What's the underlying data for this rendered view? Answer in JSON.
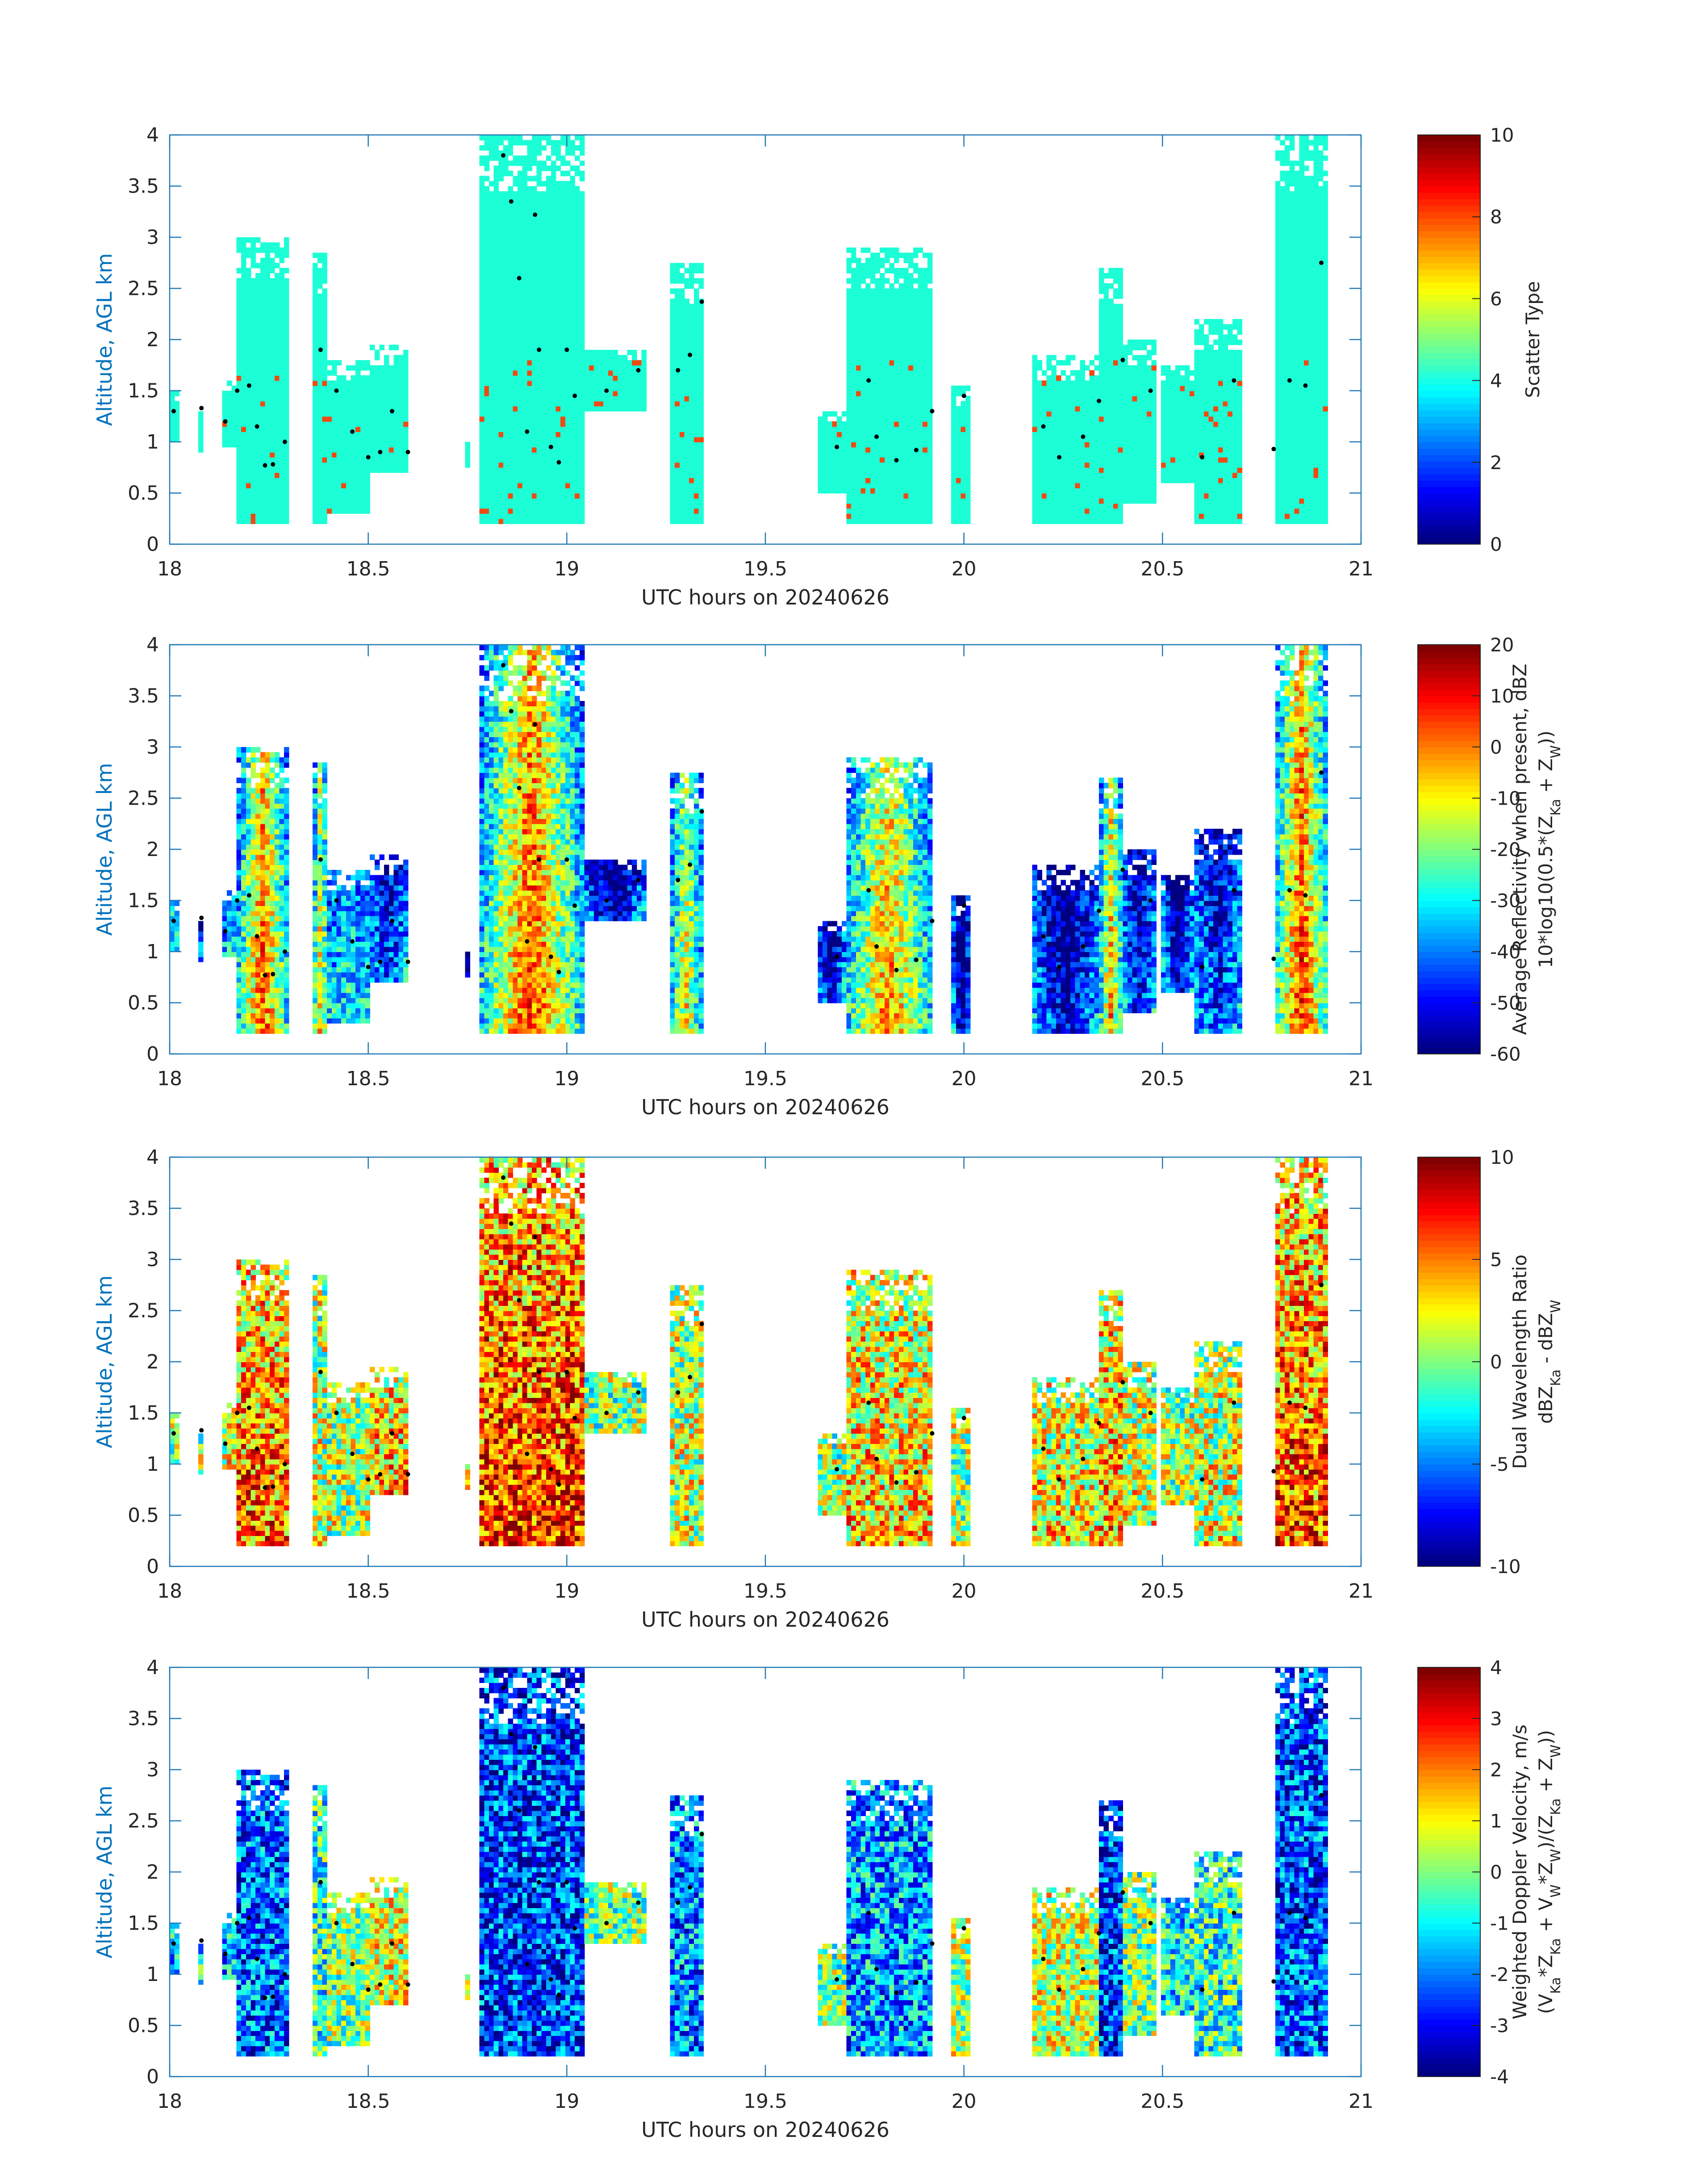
{
  "colors": {
    "axis": "#1f77b4",
    "ylabel": "#0072bd",
    "tick_text": "#262626",
    "background": "#ffffff"
  },
  "chart_data": [
    {
      "type": "heatmap",
      "xlabel": "UTC hours on 20240626",
      "ylabel": "Altitude, AGL km",
      "xlim": [
        18,
        21
      ],
      "ylim": [
        0,
        4
      ],
      "xticks": [
        "18",
        "18.5",
        "19",
        "19.5",
        "20",
        "20.5",
        "21"
      ],
      "yticks": [
        "0",
        "0.5",
        "1",
        "1.5",
        "2",
        "2.5",
        "3",
        "3.5",
        "4"
      ],
      "colorbar": {
        "label_lines": [
          "Scatter Type"
        ],
        "range": [
          0,
          10
        ],
        "ticks": [
          "0",
          "2",
          "4",
          "6",
          "8",
          "10"
        ],
        "colormap": "jet"
      },
      "field": "scatter",
      "dots": [
        [
          18.01,
          1.3
        ],
        [
          18.08,
          1.33
        ],
        [
          18.14,
          1.2
        ],
        [
          18.17,
          1.5
        ],
        [
          18.2,
          1.55
        ],
        [
          18.22,
          1.15
        ],
        [
          18.24,
          0.77
        ],
        [
          18.26,
          0.78
        ],
        [
          18.29,
          1.0
        ],
        [
          18.38,
          1.9
        ],
        [
          18.42,
          1.5
        ],
        [
          18.46,
          1.1
        ],
        [
          18.5,
          0.85
        ],
        [
          18.53,
          0.9
        ],
        [
          18.56,
          1.3
        ],
        [
          18.6,
          0.9
        ],
        [
          18.84,
          3.8
        ],
        [
          18.86,
          3.35
        ],
        [
          18.88,
          2.6
        ],
        [
          18.9,
          1.1
        ],
        [
          18.92,
          3.22
        ],
        [
          18.93,
          1.9
        ],
        [
          18.96,
          0.95
        ],
        [
          18.98,
          0.8
        ],
        [
          19.0,
          1.9
        ],
        [
          19.02,
          1.45
        ],
        [
          19.1,
          1.5
        ],
        [
          19.18,
          1.7
        ],
        [
          19.28,
          1.7
        ],
        [
          19.31,
          1.85
        ],
        [
          19.34,
          2.37
        ],
        [
          19.68,
          0.95
        ],
        [
          19.76,
          1.6
        ],
        [
          19.78,
          1.05
        ],
        [
          19.83,
          0.82
        ],
        [
          19.88,
          0.92
        ],
        [
          19.92,
          1.3
        ],
        [
          20.0,
          1.45
        ],
        [
          20.2,
          1.15
        ],
        [
          20.24,
          0.85
        ],
        [
          20.3,
          1.05
        ],
        [
          20.34,
          1.4
        ],
        [
          20.4,
          1.8
        ],
        [
          20.47,
          1.5
        ],
        [
          20.6,
          0.85
        ],
        [
          20.68,
          1.6
        ],
        [
          20.78,
          0.93
        ],
        [
          20.82,
          1.6
        ],
        [
          20.86,
          1.55
        ],
        [
          20.9,
          2.75
        ]
      ],
      "color_scale": "Scatter Type is drawn with the jet colormap; plotted values are read off the colorbar."
    },
    {
      "type": "heatmap",
      "xlabel": "UTC hours on 20240626",
      "ylabel": "Altitude, AGL km",
      "xlim": [
        18,
        21
      ],
      "ylim": [
        0,
        4
      ],
      "xticks": [
        "18",
        "18.5",
        "19",
        "19.5",
        "20",
        "20.5",
        "21"
      ],
      "yticks": [
        "0",
        "0.5",
        "1",
        "1.5",
        "2",
        "2.5",
        "3",
        "3.5",
        "4"
      ],
      "colorbar": {
        "label_lines": [
          "Average Reflectivity when present, dBZ",
          "10*log10(0.5*(Z_Ka + Z_W))"
        ],
        "range": [
          -60,
          20
        ],
        "ticks": [
          "-60",
          "-50",
          "-40",
          "-30",
          "-20",
          "-10",
          "0",
          "10",
          "20"
        ],
        "colormap": "jet"
      },
      "field": "refl",
      "dots": [
        [
          18.01,
          1.3
        ],
        [
          18.08,
          1.33
        ],
        [
          18.14,
          1.2
        ],
        [
          18.17,
          1.5
        ],
        [
          18.2,
          1.55
        ],
        [
          18.22,
          1.15
        ],
        [
          18.24,
          0.77
        ],
        [
          18.26,
          0.78
        ],
        [
          18.29,
          1.0
        ],
        [
          18.38,
          1.9
        ],
        [
          18.42,
          1.5
        ],
        [
          18.46,
          1.1
        ],
        [
          18.5,
          0.85
        ],
        [
          18.53,
          0.9
        ],
        [
          18.56,
          1.3
        ],
        [
          18.6,
          0.9
        ],
        [
          18.84,
          3.8
        ],
        [
          18.86,
          3.35
        ],
        [
          18.88,
          2.6
        ],
        [
          18.9,
          1.1
        ],
        [
          18.92,
          3.22
        ],
        [
          18.93,
          1.9
        ],
        [
          18.96,
          0.95
        ],
        [
          18.98,
          0.8
        ],
        [
          19.0,
          1.9
        ],
        [
          19.02,
          1.45
        ],
        [
          19.1,
          1.5
        ],
        [
          19.18,
          1.7
        ],
        [
          19.28,
          1.7
        ],
        [
          19.31,
          1.85
        ],
        [
          19.34,
          2.37
        ],
        [
          19.68,
          0.95
        ],
        [
          19.76,
          1.6
        ],
        [
          19.78,
          1.05
        ],
        [
          19.83,
          0.82
        ],
        [
          19.88,
          0.92
        ],
        [
          19.92,
          1.3
        ],
        [
          20.0,
          1.45
        ],
        [
          20.2,
          1.15
        ],
        [
          20.24,
          0.85
        ],
        [
          20.3,
          1.05
        ],
        [
          20.34,
          1.4
        ],
        [
          20.4,
          1.8
        ],
        [
          20.47,
          1.5
        ],
        [
          20.6,
          0.85
        ],
        [
          20.68,
          1.6
        ],
        [
          20.78,
          0.93
        ],
        [
          20.82,
          1.6
        ],
        [
          20.86,
          1.55
        ],
        [
          20.9,
          2.75
        ]
      ],
      "color_scale": "Average Reflectivity when present, dBZ is drawn with the jet colormap; plotted values are read off the colorbar."
    },
    {
      "type": "heatmap",
      "xlabel": "UTC hours on 20240626",
      "ylabel": "Altitude, AGL km",
      "xlim": [
        18,
        21
      ],
      "ylim": [
        0,
        4
      ],
      "xticks": [
        "18",
        "18.5",
        "19",
        "19.5",
        "20",
        "20.5",
        "21"
      ],
      "yticks": [
        "0",
        "0.5",
        "1",
        "1.5",
        "2",
        "2.5",
        "3",
        "3.5",
        "4"
      ],
      "colorbar": {
        "label_lines": [
          "Dual Wavelength Ratio",
          "dBZ_Ka - dBZ_W"
        ],
        "range": [
          -10,
          10
        ],
        "ticks": [
          "-10",
          "-5",
          "0",
          "5",
          "10"
        ],
        "colormap": "jet"
      },
      "field": "dwr",
      "dots": [
        [
          18.01,
          1.3
        ],
        [
          18.08,
          1.33
        ],
        [
          18.14,
          1.2
        ],
        [
          18.17,
          1.5
        ],
        [
          18.2,
          1.55
        ],
        [
          18.22,
          1.15
        ],
        [
          18.24,
          0.77
        ],
        [
          18.26,
          0.78
        ],
        [
          18.29,
          1.0
        ],
        [
          18.38,
          1.9
        ],
        [
          18.42,
          1.5
        ],
        [
          18.46,
          1.1
        ],
        [
          18.5,
          0.85
        ],
        [
          18.53,
          0.9
        ],
        [
          18.56,
          1.3
        ],
        [
          18.6,
          0.9
        ],
        [
          18.84,
          3.8
        ],
        [
          18.86,
          3.35
        ],
        [
          18.88,
          2.6
        ],
        [
          18.9,
          1.1
        ],
        [
          18.92,
          3.22
        ],
        [
          18.93,
          1.9
        ],
        [
          18.96,
          0.95
        ],
        [
          18.98,
          0.8
        ],
        [
          19.0,
          1.9
        ],
        [
          19.02,
          1.45
        ],
        [
          19.1,
          1.5
        ],
        [
          19.18,
          1.7
        ],
        [
          19.28,
          1.7
        ],
        [
          19.31,
          1.85
        ],
        [
          19.34,
          2.37
        ],
        [
          19.68,
          0.95
        ],
        [
          19.76,
          1.6
        ],
        [
          19.78,
          1.05
        ],
        [
          19.83,
          0.82
        ],
        [
          19.88,
          0.92
        ],
        [
          19.92,
          1.3
        ],
        [
          20.0,
          1.45
        ],
        [
          20.2,
          1.15
        ],
        [
          20.24,
          0.85
        ],
        [
          20.3,
          1.05
        ],
        [
          20.34,
          1.4
        ],
        [
          20.4,
          1.8
        ],
        [
          20.47,
          1.5
        ],
        [
          20.6,
          0.85
        ],
        [
          20.68,
          1.6
        ],
        [
          20.78,
          0.93
        ],
        [
          20.82,
          1.6
        ],
        [
          20.86,
          1.55
        ],
        [
          20.9,
          2.75
        ]
      ],
      "color_scale": "Dual Wavelength Ratio is drawn with the jet colormap; plotted values are read off the colorbar."
    },
    {
      "type": "heatmap",
      "xlabel": "UTC hours on 20240626",
      "ylabel": "Altitude, AGL km",
      "xlim": [
        18,
        21
      ],
      "ylim": [
        0,
        4
      ],
      "xticks": [
        "18",
        "18.5",
        "19",
        "19.5",
        "20",
        "20.5",
        "21"
      ],
      "yticks": [
        "0",
        "0.5",
        "1",
        "1.5",
        "2",
        "2.5",
        "3",
        "3.5",
        "4"
      ],
      "colorbar": {
        "label_lines": [
          "Weighted Doppler Velocity, m/s",
          "(V_Ka*Z_Ka + V_W*Z_W)/(Z_Ka + Z_W))"
        ],
        "range": [
          -4,
          4
        ],
        "ticks": [
          "-4",
          "-3",
          "-2",
          "-1",
          "0",
          "1",
          "2",
          "3",
          "4"
        ],
        "colormap": "jet"
      },
      "field": "vel",
      "dots": [
        [
          18.01,
          1.3
        ],
        [
          18.08,
          1.33
        ],
        [
          18.14,
          1.2
        ],
        [
          18.17,
          1.5
        ],
        [
          18.2,
          1.55
        ],
        [
          18.22,
          1.15
        ],
        [
          18.24,
          0.77
        ],
        [
          18.26,
          0.78
        ],
        [
          18.29,
          1.0
        ],
        [
          18.38,
          1.9
        ],
        [
          18.42,
          1.5
        ],
        [
          18.46,
          1.1
        ],
        [
          18.5,
          0.85
        ],
        [
          18.53,
          0.9
        ],
        [
          18.56,
          1.3
        ],
        [
          18.6,
          0.9
        ],
        [
          18.84,
          3.8
        ],
        [
          18.86,
          3.35
        ],
        [
          18.88,
          2.6
        ],
        [
          18.9,
          1.1
        ],
        [
          18.92,
          3.22
        ],
        [
          18.93,
          1.9
        ],
        [
          18.96,
          0.95
        ],
        [
          18.98,
          0.8
        ],
        [
          19.0,
          1.9
        ],
        [
          19.02,
          1.45
        ],
        [
          19.1,
          1.5
        ],
        [
          19.18,
          1.7
        ],
        [
          19.28,
          1.7
        ],
        [
          19.31,
          1.85
        ],
        [
          19.34,
          2.37
        ],
        [
          19.68,
          0.95
        ],
        [
          19.76,
          1.6
        ],
        [
          19.78,
          1.05
        ],
        [
          19.83,
          0.82
        ],
        [
          19.88,
          0.92
        ],
        [
          19.92,
          1.3
        ],
        [
          20.0,
          1.45
        ],
        [
          20.2,
          1.15
        ],
        [
          20.24,
          0.85
        ],
        [
          20.3,
          1.05
        ],
        [
          20.34,
          1.4
        ],
        [
          20.4,
          1.8
        ],
        [
          20.47,
          1.5
        ],
        [
          20.6,
          0.85
        ],
        [
          20.68,
          1.6
        ],
        [
          20.78,
          0.93
        ],
        [
          20.82,
          1.6
        ],
        [
          20.86,
          1.55
        ],
        [
          20.9,
          2.75
        ]
      ],
      "color_scale": "Weighted Doppler Velocity, m/s is drawn with the jet colormap; plotted values are read off the colorbar."
    }
  ],
  "cloud_cells": [
    {
      "x0": 18.0,
      "x1": 18.02,
      "y0": 1.0,
      "y1": 1.5,
      "r": 0.2,
      "v": -0.5,
      "d": 0.0
    },
    {
      "x0": 18.07,
      "x1": 18.08,
      "y0": 0.9,
      "y1": 1.35,
      "r": -0.4,
      "v": -0.3,
      "d": 0.1
    },
    {
      "x0": 18.13,
      "x1": 18.17,
      "y0": 0.95,
      "y1": 1.6,
      "r": 0.0,
      "v": -0.5,
      "d": 0.2
    },
    {
      "x0": 18.17,
      "x1": 18.3,
      "y0": 0.2,
      "y1": 3.0,
      "r": 0.85,
      "v": -0.7,
      "d": 0.55
    },
    {
      "x0": 18.36,
      "x1": 18.4,
      "y0": 0.2,
      "y1": 2.85,
      "r": 0.6,
      "v": -0.2,
      "d": 0.15
    },
    {
      "x0": 18.4,
      "x1": 18.5,
      "y0": 0.3,
      "y1": 1.8,
      "r": 0.1,
      "v": 0.0,
      "d": 0.1
    },
    {
      "x0": 18.5,
      "x1": 18.6,
      "y0": 0.7,
      "y1": 1.95,
      "r": -0.3,
      "v": 0.25,
      "d": 0.4
    },
    {
      "x0": 18.74,
      "x1": 18.76,
      "y0": 0.75,
      "y1": 1.0,
      "r": -0.5,
      "v": 0.2,
      "d": 0.4
    },
    {
      "x0": 18.78,
      "x1": 19.04,
      "y0": 0.2,
      "y1": 4.0,
      "r": 0.9,
      "v": -0.8,
      "d": 0.7
    },
    {
      "x0": 19.04,
      "x1": 19.2,
      "y0": 1.3,
      "y1": 1.9,
      "r": -0.5,
      "v": 0.0,
      "d": 0.05
    },
    {
      "x0": 19.26,
      "x1": 19.34,
      "y0": 0.2,
      "y1": 2.75,
      "r": 0.55,
      "v": -0.6,
      "d": 0.15
    },
    {
      "x0": 19.63,
      "x1": 19.7,
      "y0": 0.5,
      "y1": 1.3,
      "r": -0.5,
      "v": 0.0,
      "d": 0.1
    },
    {
      "x0": 19.7,
      "x1": 19.92,
      "y0": 0.2,
      "y1": 2.9,
      "r": 0.75,
      "v": -0.55,
      "d": 0.35
    },
    {
      "x0": 19.97,
      "x1": 20.02,
      "y0": 0.2,
      "y1": 1.55,
      "r": -0.6,
      "v": 0.1,
      "d": 0.1
    },
    {
      "x0": 20.17,
      "x1": 20.34,
      "y0": 0.2,
      "y1": 1.85,
      "r": -0.5,
      "v": 0.2,
      "d": 0.3
    },
    {
      "x0": 20.34,
      "x1": 20.4,
      "y0": 0.2,
      "y1": 2.7,
      "r": 0.7,
      "v": -0.8,
      "d": 0.45
    },
    {
      "x0": 20.4,
      "x1": 20.48,
      "y0": 0.4,
      "y1": 2.0,
      "r": -0.4,
      "v": 0.0,
      "d": 0.2
    },
    {
      "x0": 20.5,
      "x1": 20.58,
      "y0": 0.6,
      "y1": 1.75,
      "r": -0.5,
      "v": -0.3,
      "d": 0.1
    },
    {
      "x0": 20.58,
      "x1": 20.7,
      "y0": 0.2,
      "y1": 2.2,
      "r": -0.3,
      "v": -0.2,
      "d": 0.2
    },
    {
      "x0": 20.78,
      "x1": 20.92,
      "y0": 0.2,
      "y1": 4.0,
      "r": 0.9,
      "v": -0.75,
      "d": 0.6
    }
  ]
}
